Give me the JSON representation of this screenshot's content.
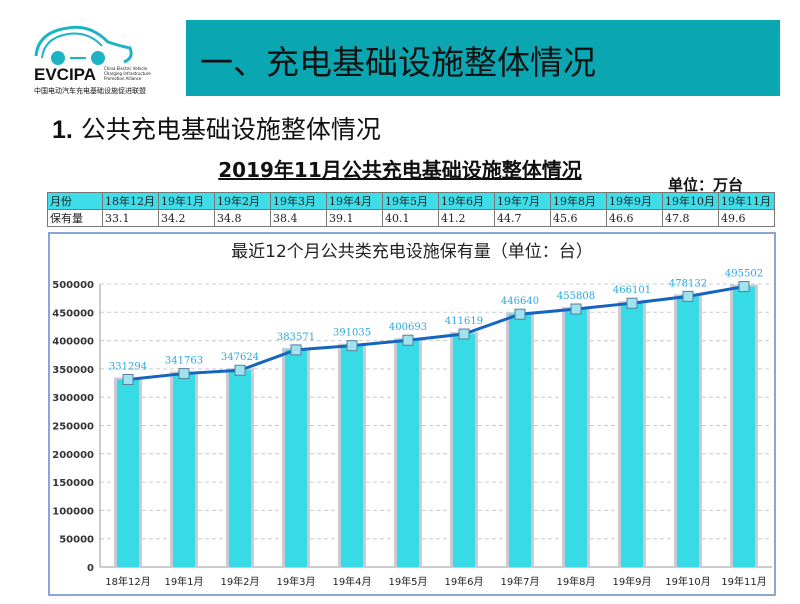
{
  "logo": {
    "name": "EVCIPA",
    "en": "China Electric Vehicle Charging Infrastructure Promotion Alliance",
    "cn": "中国电动汽车充电基础设施促进联盟"
  },
  "header": {
    "title": "一、充电基础设施整体情况"
  },
  "section": {
    "num": "1.",
    "title": "公共充电基础设施整体情况"
  },
  "table": {
    "title": "2019年11月公共充电基础设施整体情况",
    "unit": "单位：万台",
    "header": [
      "月份",
      "18年12月",
      "19年1月",
      "19年2月",
      "19年3月",
      "19年4月",
      "19年5月",
      "19年6月",
      "19年7月",
      "19年8月",
      "19年9月",
      "19年10月",
      "19年11月"
    ],
    "row": [
      "保有量",
      "33.1",
      "34.2",
      "34.8",
      "38.4",
      "39.1",
      "40.1",
      "41.2",
      "44.7",
      "45.6",
      "46.6",
      "47.8",
      "49.6"
    ]
  },
  "colors": {
    "bar": "#37dbe6",
    "line": "#1565c0",
    "label": "#29a9e0",
    "header_bg": "#0aa7b2"
  },
  "chart_data": {
    "type": "bar+line",
    "title": "最近12个月公共类充电设施保有量（单位：台）",
    "categories": [
      "18年12月",
      "19年1月",
      "19年2月",
      "19年3月",
      "19年4月",
      "19年5月",
      "19年6月",
      "19年7月",
      "19年8月",
      "19年9月",
      "19年10月",
      "19年11月"
    ],
    "values": [
      331294,
      341763,
      347624,
      383571,
      391035,
      400693,
      411619,
      446640,
      455808,
      466101,
      478132,
      495502
    ],
    "yticks": [
      0,
      50000,
      100000,
      150000,
      200000,
      250000,
      300000,
      350000,
      400000,
      450000,
      500000
    ],
    "ylim": [
      0,
      500000
    ],
    "grid": true,
    "legend": "none"
  }
}
